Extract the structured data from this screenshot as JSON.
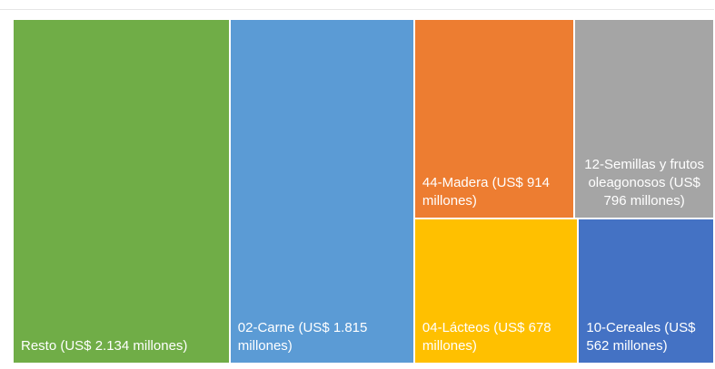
{
  "chart_data": {
    "type": "treemap",
    "value_labels": [
      "Resto  (US$ 2.134 millones)",
      "02-Carne (US$ 1.815 millones)",
      "44-Madera (US$ 914 millones)",
      "12-Semillas y frutos oleagonosos (US$ 796 millones)",
      "04-Lácteos (US$ 678 millones)",
      "10-Cereales (US$ 562 millones)"
    ],
    "values": [
      2134,
      1815,
      914,
      796,
      678,
      562
    ],
    "colors": [
      "#70ad47",
      "#5b9bd5",
      "#ed7d31",
      "#a5a5a5",
      "#ffc000",
      "#4472c4"
    ]
  }
}
